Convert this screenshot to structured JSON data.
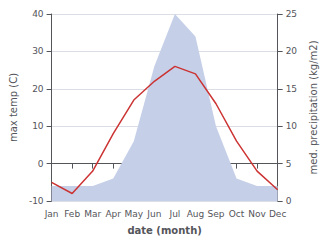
{
  "chart_data": {
    "type": "line",
    "xlabel": "date (month)",
    "ylabel": "max temp (C)",
    "y2label": "med. precipitation (kg/m2)",
    "categories": [
      "Jan",
      "Feb",
      "Mar",
      "Apr",
      "May",
      "Jun",
      "Jul",
      "Aug",
      "Sep",
      "Oct",
      "Nov",
      "Dec"
    ],
    "series": [
      {
        "type": "area",
        "color": "#c5d0e8",
        "axis": "y2",
        "values": [
          2,
          2,
          2,
          3,
          8,
          18,
          25,
          22,
          10,
          3,
          2,
          2
        ]
      },
      {
        "type": "line",
        "color": "#cc3333",
        "values": [
          -5,
          -8,
          -2,
          8,
          17,
          22,
          26,
          24,
          16,
          6,
          -2,
          -7
        ]
      }
    ],
    "ylim": [
      -10,
      40
    ],
    "yticks": [
      -10,
      0,
      10,
      20,
      30,
      40
    ],
    "y2lim": [
      0,
      25
    ],
    "y2ticks": [
      0,
      5,
      10,
      15,
      20,
      25
    ],
    "grid": true
  }
}
